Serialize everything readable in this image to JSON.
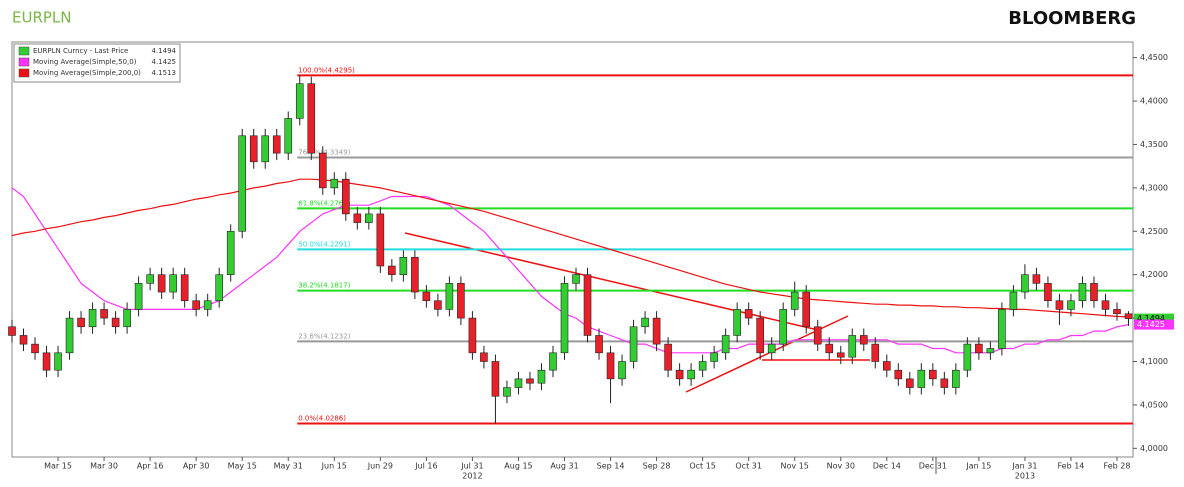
{
  "header": {
    "symbol": "EURPLN",
    "brand": "BLOOMBERG"
  },
  "chart_data": {
    "type": "candlestick",
    "categories": [
      null,
      null,
      null,
      null,
      "Mar 15",
      null,
      null,
      null,
      "Mar 30",
      null,
      null,
      null,
      "Apr 16",
      null,
      null,
      null,
      "Apr 30",
      null,
      null,
      null,
      "May 15",
      null,
      null,
      null,
      "May 31",
      null,
      null,
      null,
      "Jun 15",
      null,
      null,
      null,
      "Jun 29",
      null,
      null,
      null,
      "Jul 16",
      null,
      null,
      null,
      "Jul 31",
      null,
      null,
      null,
      "Aug 15",
      null,
      null,
      null,
      "Aug 31",
      null,
      null,
      null,
      "Sep 14",
      null,
      null,
      null,
      "Sep 28",
      null,
      null,
      null,
      "Oct 15",
      null,
      null,
      null,
      "Oct 31",
      null,
      null,
      null,
      "Nov 15",
      null,
      null,
      null,
      "Nov 30",
      null,
      null,
      null,
      "Dec 14",
      null,
      null,
      null,
      "Dec 31",
      null,
      null,
      null,
      "Jan 15",
      null,
      null,
      null,
      "Jan 31",
      null,
      null,
      null,
      "Feb 14",
      null,
      null,
      null,
      "Feb 28",
      null
    ],
    "years": [
      null,
      null,
      null,
      null,
      null,
      null,
      null,
      null,
      null,
      null,
      null,
      null,
      null,
      null,
      null,
      null,
      null,
      null,
      null,
      null,
      null,
      null,
      null,
      null,
      null,
      null,
      null,
      null,
      null,
      null,
      null,
      null,
      null,
      null,
      null,
      null,
      null,
      null,
      null,
      null,
      "2012",
      null,
      null,
      null,
      null,
      null,
      null,
      null,
      null,
      null,
      null,
      null,
      null,
      null,
      null,
      null,
      null,
      null,
      null,
      null,
      null,
      null,
      null,
      null,
      null,
      null,
      null,
      null,
      null,
      null,
      null,
      null,
      null,
      null,
      null,
      null,
      null,
      null,
      null,
      null,
      null,
      null,
      null,
      null,
      null,
      null,
      null,
      null,
      "2013",
      null,
      null,
      null,
      null,
      null,
      null,
      null,
      null,
      null
    ],
    "candles": {
      "name": "EURPLN Curncy - Last Price",
      "last": 4.1494,
      "color": "#33cc33",
      "up_color": "#33cc33",
      "down_color": "#e8202a",
      "open": [
        4.14,
        4.13,
        4.12,
        4.11,
        4.09,
        4.11,
        4.15,
        4.14,
        4.16,
        4.15,
        4.14,
        4.16,
        4.19,
        4.2,
        4.18,
        4.2,
        4.17,
        4.16,
        4.17,
        4.2,
        4.25,
        4.36,
        4.33,
        4.36,
        4.34,
        4.38,
        4.42,
        4.34,
        4.3,
        4.31,
        4.27,
        4.26,
        4.27,
        4.21,
        4.2,
        4.22,
        4.18,
        4.17,
        4.16,
        4.19,
        4.15,
        4.11,
        4.1,
        4.06,
        4.07,
        4.08,
        4.075,
        4.09,
        4.11,
        4.19,
        4.2,
        4.13,
        4.11,
        4.08,
        4.1,
        4.14,
        4.15,
        4.12,
        4.09,
        4.08,
        4.09,
        4.1,
        4.11,
        4.13,
        4.16,
        4.15,
        4.11,
        4.12,
        4.16,
        4.18,
        4.14,
        4.12,
        4.11,
        4.105,
        4.13,
        4.12,
        4.1,
        4.09,
        4.08,
        4.07,
        4.09,
        4.08,
        4.07,
        4.09,
        4.12,
        4.11,
        4.115,
        4.16,
        4.18,
        4.2,
        4.19,
        4.17,
        4.16,
        4.17,
        4.19,
        4.17,
        4.16,
        4.155
      ],
      "high": [
        4.148,
        4.138,
        4.128,
        4.118,
        4.118,
        4.158,
        4.158,
        4.168,
        4.168,
        4.158,
        4.168,
        4.198,
        4.208,
        4.208,
        4.208,
        4.208,
        4.178,
        4.178,
        4.208,
        4.258,
        4.368,
        4.368,
        4.368,
        4.368,
        4.388,
        4.4295,
        4.428,
        4.348,
        4.318,
        4.318,
        4.278,
        4.278,
        4.278,
        4.218,
        4.228,
        4.228,
        4.188,
        4.178,
        4.198,
        4.198,
        4.158,
        4.118,
        4.108,
        4.078,
        4.088,
        4.088,
        4.098,
        4.118,
        4.198,
        4.208,
        4.208,
        4.138,
        4.118,
        4.108,
        4.148,
        4.158,
        4.158,
        4.128,
        4.098,
        4.098,
        4.108,
        4.118,
        4.138,
        4.168,
        4.168,
        4.158,
        4.128,
        4.168,
        4.192,
        4.188,
        4.148,
        4.128,
        4.118,
        4.138,
        4.138,
        4.128,
        4.108,
        4.098,
        4.088,
        4.098,
        4.098,
        4.088,
        4.098,
        4.128,
        4.128,
        4.123,
        4.168,
        4.188,
        4.212,
        4.208,
        4.198,
        4.178,
        4.178,
        4.198,
        4.198,
        4.178,
        4.168,
        4.158
      ],
      "low": [
        4.122,
        4.112,
        4.102,
        4.082,
        4.082,
        4.102,
        4.132,
        4.132,
        4.142,
        4.132,
        4.132,
        4.152,
        4.182,
        4.172,
        4.172,
        4.162,
        4.152,
        4.152,
        4.162,
        4.192,
        4.242,
        4.322,
        4.322,
        4.332,
        4.332,
        4.372,
        4.332,
        4.292,
        4.292,
        4.262,
        4.252,
        4.252,
        4.202,
        4.192,
        4.192,
        4.172,
        4.162,
        4.152,
        4.152,
        4.142,
        4.102,
        4.092,
        4.0286,
        4.052,
        4.062,
        4.067,
        4.067,
        4.082,
        4.102,
        4.182,
        4.122,
        4.102,
        4.052,
        4.072,
        4.092,
        4.132,
        4.112,
        4.082,
        4.072,
        4.072,
        4.082,
        4.092,
        4.102,
        4.122,
        4.142,
        4.102,
        4.102,
        4.112,
        4.152,
        4.132,
        4.112,
        4.102,
        4.097,
        4.097,
        4.112,
        4.092,
        4.082,
        4.072,
        4.062,
        4.062,
        4.072,
        4.062,
        4.062,
        4.082,
        4.102,
        4.102,
        4.107,
        4.152,
        4.172,
        4.182,
        4.162,
        4.142,
        4.152,
        4.162,
        4.162,
        4.152,
        4.147,
        4.141
      ],
      "close": [
        4.13,
        4.12,
        4.11,
        4.09,
        4.11,
        4.15,
        4.14,
        4.16,
        4.15,
        4.14,
        4.16,
        4.19,
        4.2,
        4.18,
        4.2,
        4.17,
        4.16,
        4.17,
        4.2,
        4.25,
        4.36,
        4.33,
        4.36,
        4.34,
        4.38,
        4.42,
        4.34,
        4.3,
        4.31,
        4.27,
        4.26,
        4.27,
        4.21,
        4.2,
        4.22,
        4.18,
        4.17,
        4.16,
        4.19,
        4.15,
        4.11,
        4.1,
        4.06,
        4.07,
        4.08,
        4.075,
        4.09,
        4.11,
        4.19,
        4.2,
        4.13,
        4.11,
        4.08,
        4.1,
        4.14,
        4.15,
        4.12,
        4.09,
        4.08,
        4.09,
        4.1,
        4.11,
        4.13,
        4.16,
        4.15,
        4.11,
        4.12,
        4.16,
        4.18,
        4.14,
        4.12,
        4.11,
        4.105,
        4.13,
        4.12,
        4.1,
        4.09,
        4.08,
        4.07,
        4.09,
        4.08,
        4.07,
        4.09,
        4.12,
        4.11,
        4.115,
        4.16,
        4.18,
        4.2,
        4.19,
        4.17,
        4.16,
        4.17,
        4.19,
        4.17,
        4.16,
        4.155,
        4.1494
      ]
    },
    "series": [
      {
        "name": "Moving Average(Simple,50,0)",
        "last": 4.1425,
        "color": "#ff33ff",
        "values": [
          4.3,
          4.29,
          4.27,
          4.25,
          4.23,
          4.21,
          4.19,
          4.18,
          4.17,
          4.165,
          4.16,
          4.16,
          4.16,
          4.16,
          4.16,
          4.16,
          4.16,
          4.165,
          4.17,
          4.18,
          4.19,
          4.2,
          4.21,
          4.22,
          4.235,
          4.25,
          4.26,
          4.27,
          4.275,
          4.28,
          4.28,
          4.28,
          4.285,
          4.29,
          4.29,
          4.29,
          4.29,
          4.285,
          4.28,
          4.27,
          4.26,
          4.25,
          4.235,
          4.22,
          4.205,
          4.19,
          4.175,
          4.165,
          4.155,
          4.15,
          4.14,
          4.135,
          4.13,
          4.125,
          4.12,
          4.12,
          4.115,
          4.11,
          4.11,
          4.11,
          4.11,
          4.11,
          4.115,
          4.115,
          4.12,
          4.12,
          4.12,
          4.12,
          4.125,
          4.125,
          4.125,
          4.125,
          4.125,
          4.125,
          4.125,
          4.125,
          4.125,
          4.12,
          4.12,
          4.12,
          4.115,
          4.115,
          4.11,
          4.11,
          4.11,
          4.11,
          4.115,
          4.115,
          4.12,
          4.12,
          4.125,
          4.125,
          4.13,
          4.13,
          4.135,
          4.135,
          4.14,
          4.1425
        ]
      },
      {
        "name": "Moving Average(Simple,200,0)",
        "last": 4.1513,
        "color": "#ee1111",
        "values": [
          4.245,
          4.248,
          4.25,
          4.253,
          4.255,
          4.258,
          4.261,
          4.263,
          4.266,
          4.268,
          4.271,
          4.274,
          4.276,
          4.279,
          4.281,
          4.284,
          4.287,
          4.289,
          4.292,
          4.294,
          4.297,
          4.3,
          4.302,
          4.305,
          4.307,
          4.31,
          4.31,
          4.309,
          4.308,
          4.306,
          4.304,
          4.302,
          4.3,
          4.297,
          4.294,
          4.291,
          4.288,
          4.285,
          4.282,
          4.279,
          4.276,
          4.273,
          4.269,
          4.265,
          4.261,
          4.257,
          4.253,
          4.249,
          4.245,
          4.241,
          4.237,
          4.233,
          4.229,
          4.225,
          4.221,
          4.217,
          4.213,
          4.209,
          4.205,
          4.201,
          4.197,
          4.193,
          4.189,
          4.186,
          4.183,
          4.18,
          4.178,
          4.176,
          4.174,
          4.172,
          4.171,
          4.17,
          4.169,
          4.168,
          4.167,
          4.166,
          4.166,
          4.165,
          4.165,
          4.164,
          4.164,
          4.163,
          4.163,
          4.162,
          4.162,
          4.161,
          4.161,
          4.16,
          4.16,
          4.159,
          4.158,
          4.157,
          4.156,
          4.155,
          4.154,
          4.153,
          4.152,
          4.1513
        ]
      }
    ],
    "levels": [
      {
        "value": 4.4295,
        "label": "100.0%(4.4295)",
        "color": "#ee1111"
      },
      {
        "value": 4.3349,
        "label": "76.4%(4.3349)",
        "color": "#999999"
      },
      {
        "value": 4.2764,
        "label": "61.8%(4.2764)",
        "color": "#22dd22"
      },
      {
        "value": 4.2291,
        "label": "50.0%(4.2291)",
        "color": "#22dddd"
      },
      {
        "value": 4.1817,
        "label": "38.2%(4.1817)",
        "color": "#22dd22"
      },
      {
        "value": 4.1232,
        "label": "23.6%(4.1232)",
        "color": "#999999"
      },
      {
        "value": 4.0286,
        "label": "0.0%(4.0286)",
        "color": "#ee1111"
      }
    ],
    "ylim": [
      3.99,
      4.468
    ],
    "yticks": [
      {
        "value": 4.0,
        "label": "4,0000"
      },
      {
        "value": 4.05,
        "label": "4,0500"
      },
      {
        "value": 4.1,
        "label": "4,1000"
      },
      {
        "value": 4.15,
        "label": "4,1500"
      },
      {
        "value": 4.2,
        "label": "4,2000"
      },
      {
        "value": 4.25,
        "label": "4,2500"
      },
      {
        "value": 4.3,
        "label": "4,3000"
      },
      {
        "value": 4.35,
        "label": "4,3500"
      },
      {
        "value": 4.4,
        "label": "4,4000"
      },
      {
        "value": 4.45,
        "label": "4,4500"
      }
    ],
    "grid": false,
    "legend": "upper left"
  }
}
